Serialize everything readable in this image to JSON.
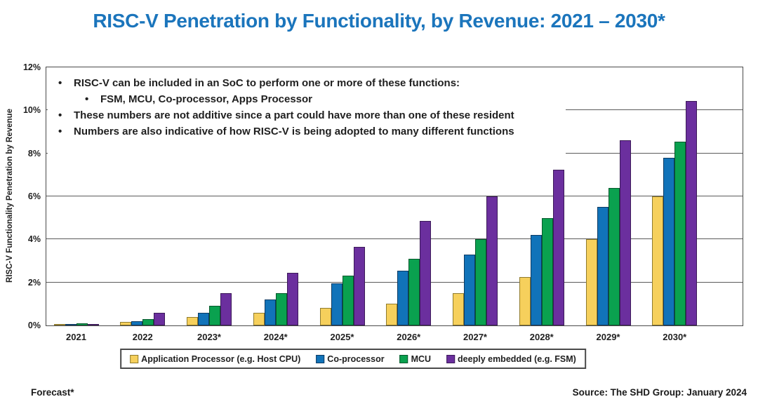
{
  "title": "RISC-V Penetration by Functionality, by Revenue: 2021 – 2030*",
  "colors": {
    "title_text": "#1B75BC",
    "axis_line": "#4a4a4a",
    "body_text": "#1f1f1f",
    "series_yellow": "#F6D05C",
    "series_blue": "#1173B9",
    "series_green": "#0AA14F",
    "series_purple": "#6B2F9E"
  },
  "annotations": {
    "bullets": [
      {
        "level": 1,
        "text": "RISC-V can be included in an SoC to perform one or more of these functions:"
      },
      {
        "level": 2,
        "text": "FSM, MCU, Co-processor, Apps Processor"
      },
      {
        "level": 1,
        "text": "These numbers are not additive since a part could have more than one of these resident"
      },
      {
        "level": 1,
        "text": "Numbers are also indicative of how RISC-V is being adopted to many different functions"
      }
    ]
  },
  "footer": {
    "left": "Forecast*",
    "right": "Source: The SHD Group: January 2024"
  },
  "chart_data": {
    "type": "bar",
    "title": "RISC-V Penetration by Functionality, by Revenue: 2021 – 2030*",
    "xlabel": "",
    "ylabel": "RISC-V Functionality Penetration by Revenue",
    "units": "%",
    "ylim": [
      0,
      12
    ],
    "y_ticks": [
      "0%",
      "2%",
      "4%",
      "6%",
      "8%",
      "10%",
      "12%"
    ],
    "grid": true,
    "legend_position": "bottom",
    "categories": [
      "2021",
      "2022",
      "2023*",
      "2024*",
      "2025*",
      "2026*",
      "2027*",
      "2028*",
      "2029*",
      "2030*"
    ],
    "series": [
      {
        "name": "Application Processor (e.g. Host CPU)",
        "color": "#F6D05C",
        "border": "#8F7B2E",
        "values": [
          0.05,
          0.15,
          0.4,
          0.6,
          0.8,
          1.0,
          1.5,
          2.25,
          4.0,
          6.0
        ]
      },
      {
        "name": "Co-processor",
        "color": "#1173B9",
        "border": "#0D3A63",
        "values": [
          0.07,
          0.2,
          0.6,
          1.2,
          1.95,
          2.55,
          3.3,
          4.2,
          5.5,
          7.8
        ]
      },
      {
        "name": "MCU",
        "color": "#0AA14F",
        "border": "#07582D",
        "values": [
          0.1,
          0.3,
          0.9,
          1.5,
          2.3,
          3.1,
          4.0,
          5.0,
          6.4,
          8.55
        ]
      },
      {
        "name": "deeply embedded (e.g. FSM)",
        "color": "#6B2F9E",
        "border": "#3C1A59",
        "values": [
          0.08,
          0.6,
          1.5,
          2.45,
          3.65,
          4.85,
          6.0,
          7.25,
          8.6,
          10.45
        ]
      }
    ]
  }
}
